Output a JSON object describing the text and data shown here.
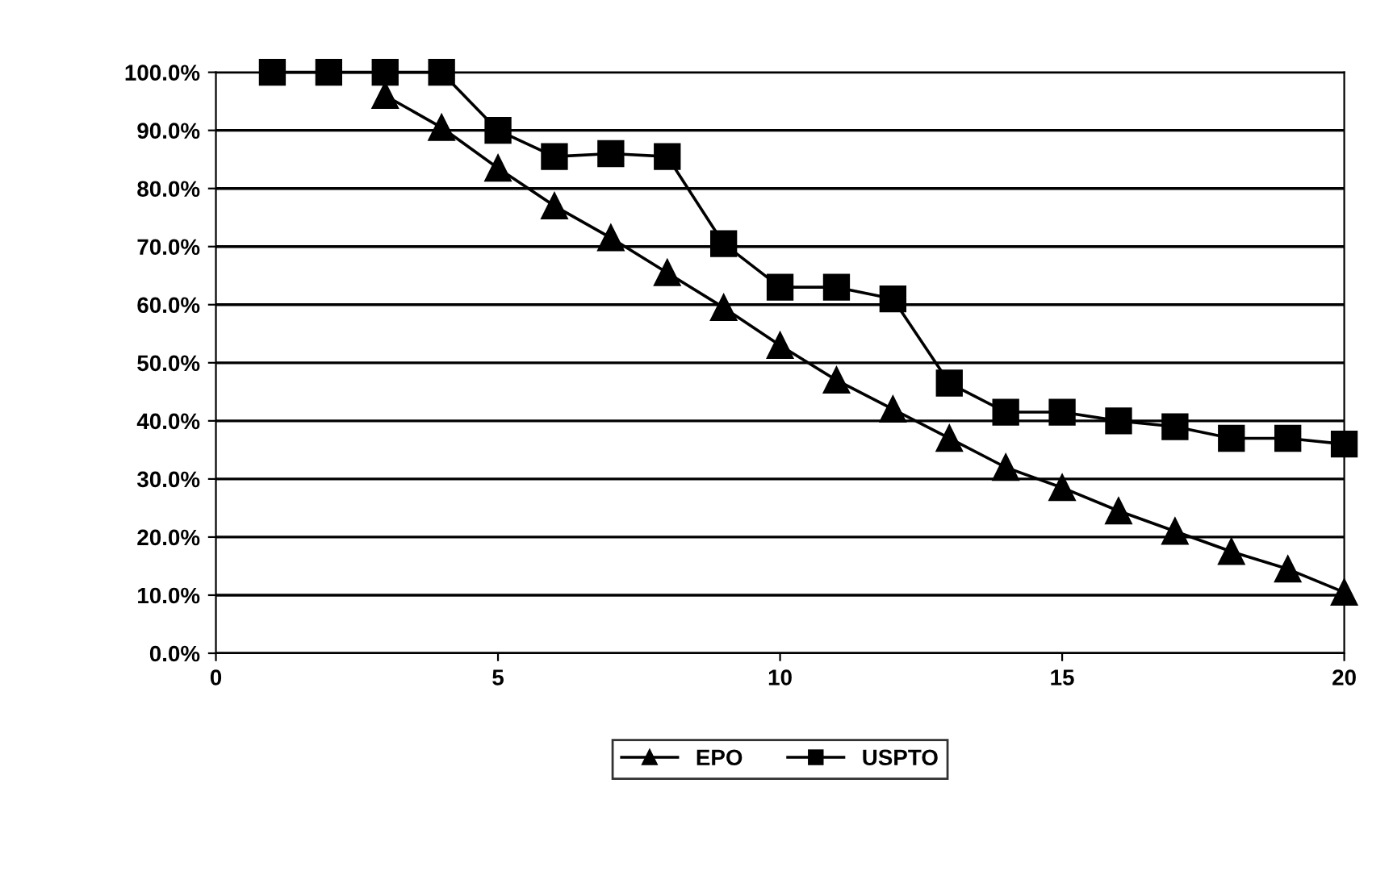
{
  "chart_data": {
    "type": "line",
    "x": [
      1,
      2,
      3,
      4,
      5,
      6,
      7,
      8,
      9,
      10,
      11,
      12,
      13,
      14,
      15,
      16,
      17,
      18,
      19,
      20
    ],
    "series": [
      {
        "name": "EPO",
        "color": "#000000",
        "marker": "triangle",
        "values": [
          null,
          null,
          96,
          90.5,
          83.5,
          77,
          71.5,
          65.5,
          59.5,
          53,
          47,
          42,
          37,
          32,
          28.5,
          24.5,
          21,
          17.5,
          14.5,
          10.5
        ]
      },
      {
        "name": "USPTO",
        "color": "#000000",
        "marker": "square",
        "values": [
          100,
          100,
          100,
          100,
          90,
          85.5,
          86,
          85.5,
          70.5,
          63,
          63,
          61,
          46.5,
          41.5,
          41.5,
          40,
          39,
          37,
          37,
          36
        ]
      }
    ],
    "xlim": [
      0,
      20
    ],
    "xticks": [
      0,
      5,
      10,
      15,
      20
    ],
    "ylim": [
      0,
      100
    ],
    "yticks": [
      {
        "value": 0,
        "label": "0.0%"
      },
      {
        "value": 10,
        "label": "10.0%"
      },
      {
        "value": 20,
        "label": "20.0%"
      },
      {
        "value": 30,
        "label": "30.0%"
      },
      {
        "value": 40,
        "label": "40.0%"
      },
      {
        "value": 50,
        "label": "50.0%"
      },
      {
        "value": 60,
        "label": "60.0%"
      },
      {
        "value": 70,
        "label": "70.0%"
      },
      {
        "value": 80,
        "label": "80.0%"
      },
      {
        "value": 90,
        "label": "90.0%"
      },
      {
        "value": 100,
        "label": "100.0%"
      }
    ],
    "grid": "y",
    "legend": "bottom",
    "line_style": "solid"
  }
}
